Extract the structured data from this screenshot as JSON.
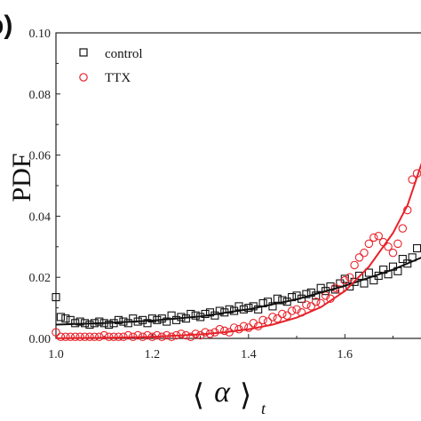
{
  "panel_label": "b)",
  "chart_data": {
    "type": "scatter",
    "xlabel_symbol": "α",
    "xlabel_subscript": "t",
    "ylabel": "PDF",
    "xlim": [
      1.0,
      1.76
    ],
    "ylim": [
      0.0,
      0.1
    ],
    "x_ticks": [
      "1.0",
      "1.2",
      "1.4",
      "1.6"
    ],
    "y_ticks": [
      "0.00",
      "0.02",
      "0.04",
      "0.06",
      "0.08",
      "0.10"
    ],
    "legend_position": "top-left",
    "series": [
      {
        "name": "control",
        "marker": "square",
        "color": "#111111",
        "x": [
          1.0,
          1.01,
          1.02,
          1.03,
          1.04,
          1.05,
          1.06,
          1.07,
          1.08,
          1.09,
          1.1,
          1.11,
          1.12,
          1.13,
          1.14,
          1.15,
          1.16,
          1.17,
          1.18,
          1.19,
          1.2,
          1.21,
          1.22,
          1.23,
          1.24,
          1.25,
          1.26,
          1.27,
          1.28,
          1.29,
          1.3,
          1.31,
          1.32,
          1.33,
          1.34,
          1.35,
          1.36,
          1.37,
          1.38,
          1.39,
          1.4,
          1.41,
          1.42,
          1.43,
          1.44,
          1.45,
          1.46,
          1.47,
          1.48,
          1.49,
          1.5,
          1.51,
          1.52,
          1.53,
          1.54,
          1.55,
          1.56,
          1.57,
          1.58,
          1.59,
          1.6,
          1.61,
          1.62,
          1.63,
          1.64,
          1.65,
          1.66,
          1.67,
          1.68,
          1.69,
          1.7,
          1.71,
          1.72,
          1.73,
          1.74,
          1.75
        ],
        "y": [
          0.0135,
          0.007,
          0.0065,
          0.006,
          0.005,
          0.0055,
          0.005,
          0.0045,
          0.005,
          0.0055,
          0.005,
          0.0045,
          0.005,
          0.006,
          0.0055,
          0.005,
          0.0065,
          0.0055,
          0.006,
          0.005,
          0.0065,
          0.006,
          0.0065,
          0.0055,
          0.0075,
          0.006,
          0.007,
          0.0065,
          0.008,
          0.0075,
          0.007,
          0.008,
          0.0085,
          0.0075,
          0.009,
          0.0085,
          0.0095,
          0.009,
          0.0105,
          0.0095,
          0.01,
          0.0105,
          0.0095,
          0.0115,
          0.012,
          0.0105,
          0.013,
          0.0125,
          0.012,
          0.0135,
          0.014,
          0.013,
          0.0145,
          0.015,
          0.014,
          0.0165,
          0.0155,
          0.017,
          0.016,
          0.018,
          0.0195,
          0.017,
          0.0185,
          0.0205,
          0.018,
          0.0215,
          0.019,
          0.0205,
          0.0225,
          0.021,
          0.0235,
          0.022,
          0.026,
          0.0245,
          0.0265,
          0.0295
        ]
      },
      {
        "name": "TTX",
        "marker": "circle",
        "color": "#e8222a",
        "x": [
          1.0,
          1.01,
          1.02,
          1.03,
          1.04,
          1.05,
          1.06,
          1.07,
          1.08,
          1.09,
          1.1,
          1.11,
          1.12,
          1.13,
          1.14,
          1.15,
          1.16,
          1.17,
          1.18,
          1.19,
          1.2,
          1.21,
          1.22,
          1.23,
          1.24,
          1.25,
          1.26,
          1.27,
          1.28,
          1.29,
          1.3,
          1.31,
          1.32,
          1.33,
          1.34,
          1.35,
          1.36,
          1.37,
          1.38,
          1.39,
          1.4,
          1.41,
          1.42,
          1.43,
          1.44,
          1.45,
          1.46,
          1.47,
          1.48,
          1.49,
          1.5,
          1.51,
          1.52,
          1.53,
          1.54,
          1.55,
          1.56,
          1.57,
          1.58,
          1.59,
          1.6,
          1.61,
          1.62,
          1.63,
          1.64,
          1.65,
          1.66,
          1.67,
          1.68,
          1.69,
          1.7,
          1.71,
          1.72,
          1.73,
          1.74,
          1.75
        ],
        "y": [
          0.002,
          0.0005,
          0.0005,
          0.0005,
          0.0005,
          0.0005,
          0.0005,
          0.0005,
          0.0005,
          0.0005,
          0.001,
          0.0005,
          0.0005,
          0.0005,
          0.0005,
          0.001,
          0.0005,
          0.001,
          0.0005,
          0.001,
          0.0005,
          0.001,
          0.0005,
          0.001,
          0.0005,
          0.001,
          0.0015,
          0.001,
          0.0005,
          0.0015,
          0.001,
          0.002,
          0.0015,
          0.002,
          0.003,
          0.0025,
          0.002,
          0.0035,
          0.003,
          0.004,
          0.0035,
          0.005,
          0.004,
          0.006,
          0.0055,
          0.007,
          0.0065,
          0.008,
          0.0075,
          0.009,
          0.0095,
          0.0085,
          0.011,
          0.0105,
          0.012,
          0.0115,
          0.014,
          0.013,
          0.0165,
          0.016,
          0.019,
          0.02,
          0.024,
          0.0265,
          0.028,
          0.031,
          0.033,
          0.0335,
          0.0315,
          0.03,
          0.028,
          0.031,
          0.036,
          0.042,
          0.052,
          0.054
        ]
      }
    ],
    "fits": [
      {
        "name": "control fit",
        "color": "#111111",
        "x": [
          1.0,
          1.1,
          1.2,
          1.3,
          1.4,
          1.5,
          1.6,
          1.7,
          1.76
        ],
        "y": [
          0.0045,
          0.005,
          0.0058,
          0.0072,
          0.0095,
          0.0128,
          0.0172,
          0.0225,
          0.0265
        ]
      },
      {
        "name": "TTX fit",
        "color": "#e8222a",
        "x": [
          1.0,
          1.1,
          1.2,
          1.3,
          1.35,
          1.4,
          1.45,
          1.5,
          1.55,
          1.6,
          1.65,
          1.7,
          1.73,
          1.76
        ],
        "y": [
          0.0001,
          0.0002,
          0.0005,
          0.0013,
          0.002,
          0.003,
          0.0045,
          0.0068,
          0.0102,
          0.0155,
          0.0235,
          0.0345,
          0.0435,
          0.0575
        ]
      }
    ]
  }
}
